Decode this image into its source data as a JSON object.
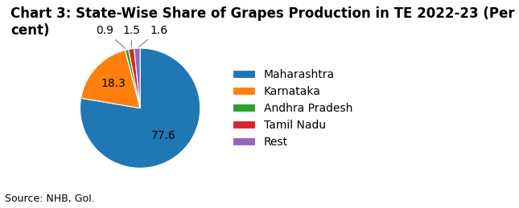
{
  "chart_data": {
    "type": "pie",
    "title": "Chart 3: State-Wise Share of Grapes Production in TE 2022-23 (Per cent)",
    "categories": [
      "Maharashtra",
      "Karnataka",
      "Andhra Pradesh",
      "Tamil Nadu",
      "Rest"
    ],
    "values": [
      77.6,
      18.3,
      0.9,
      1.5,
      1.6
    ],
    "data_labels": true,
    "legend": "center left",
    "annotations": [
      "Source: NHB, GoI."
    ]
  }
}
